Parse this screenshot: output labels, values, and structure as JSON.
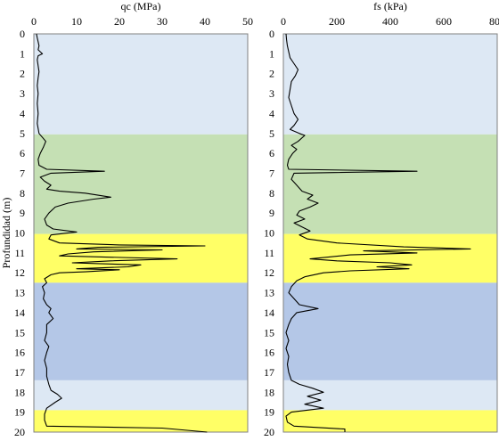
{
  "chart_data": [
    {
      "type": "line",
      "title": "",
      "xlabel": "qc (MPa)",
      "ylabel": "Profundidad (m)",
      "xlim": [
        0,
        50
      ],
      "ylim": [
        0,
        20
      ],
      "x_ticks": [
        "0",
        "10",
        "20",
        "30",
        "40",
        "50"
      ],
      "y_ticks": [
        "0",
        "1",
        "2",
        "3",
        "4",
        "5",
        "6",
        "7",
        "8",
        "9",
        "10",
        "11",
        "12",
        "13",
        "14",
        "15",
        "16",
        "17",
        "18",
        "19",
        "20"
      ],
      "y_inverted": true,
      "x_axis_position": "top",
      "grid": false,
      "series": [
        {
          "points": [
            [
              0.6,
              0.0
            ],
            [
              0.8,
              0.2
            ],
            [
              1.0,
              0.4
            ],
            [
              1.2,
              0.6
            ],
            [
              1.0,
              0.8
            ],
            [
              2.0,
              1.0
            ],
            [
              1.0,
              1.1
            ],
            [
              0.8,
              1.3
            ],
            [
              1.0,
              1.6
            ],
            [
              1.2,
              1.9
            ],
            [
              1.0,
              2.2
            ],
            [
              0.8,
              2.6
            ],
            [
              1.0,
              3.0
            ],
            [
              0.8,
              3.5
            ],
            [
              1.0,
              4.0
            ],
            [
              0.8,
              4.5
            ],
            [
              1.2,
              5.0
            ],
            [
              2.0,
              5.2
            ],
            [
              2.8,
              5.4
            ],
            [
              2.2,
              5.7
            ],
            [
              1.5,
              6.0
            ],
            [
              1.0,
              6.3
            ],
            [
              1.2,
              6.6
            ],
            [
              3.0,
              6.8
            ],
            [
              16.5,
              6.9
            ],
            [
              4.0,
              7.0
            ],
            [
              1.5,
              7.2
            ],
            [
              2.5,
              7.4
            ],
            [
              4.0,
              7.6
            ],
            [
              3.0,
              7.8
            ],
            [
              6.0,
              7.9
            ],
            [
              12.0,
              8.0
            ],
            [
              18.0,
              8.2
            ],
            [
              14.0,
              8.3
            ],
            [
              8.0,
              8.5
            ],
            [
              5.0,
              8.7
            ],
            [
              3.5,
              9.0
            ],
            [
              2.5,
              9.3
            ],
            [
              3.0,
              9.6
            ],
            [
              4.5,
              9.8
            ],
            [
              10.0,
              9.95
            ],
            [
              4.0,
              10.1
            ],
            [
              3.5,
              10.3
            ],
            [
              6.0,
              10.5
            ],
            [
              20.0,
              10.6
            ],
            [
              40.0,
              10.65
            ],
            [
              15.0,
              10.72
            ],
            [
              10.0,
              10.8
            ],
            [
              30.0,
              10.85
            ],
            [
              14.0,
              10.95
            ],
            [
              8.0,
              11.05
            ],
            [
              6.0,
              11.15
            ],
            [
              33.5,
              11.3
            ],
            [
              18.0,
              11.4
            ],
            [
              9.0,
              11.5
            ],
            [
              16.0,
              11.55
            ],
            [
              25.0,
              11.6
            ],
            [
              22.0,
              11.7
            ],
            [
              10.0,
              11.8
            ],
            [
              20.0,
              11.85
            ],
            [
              12.0,
              11.95
            ],
            [
              6.0,
              12.0
            ],
            [
              4.0,
              12.1
            ],
            [
              2.5,
              12.3
            ],
            [
              3.0,
              12.5
            ],
            [
              2.0,
              12.7
            ],
            [
              2.5,
              13.0
            ],
            [
              2.2,
              13.3
            ],
            [
              3.0,
              13.6
            ],
            [
              4.0,
              13.8
            ],
            [
              3.5,
              14.0
            ],
            [
              4.5,
              14.3
            ],
            [
              3.0,
              14.6
            ],
            [
              3.0,
              15.0
            ],
            [
              2.5,
              15.4
            ],
            [
              3.5,
              15.7
            ],
            [
              3.0,
              16.0
            ],
            [
              2.5,
              16.4
            ],
            [
              3.0,
              16.8
            ],
            [
              3.0,
              17.2
            ],
            [
              3.5,
              17.6
            ],
            [
              4.0,
              17.9
            ],
            [
              5.5,
              18.1
            ],
            [
              6.5,
              18.3
            ],
            [
              5.0,
              18.5
            ],
            [
              3.0,
              18.8
            ],
            [
              2.5,
              19.1
            ],
            [
              2.5,
              19.4
            ],
            [
              3.0,
              19.7
            ],
            [
              30.0,
              19.8
            ],
            [
              40.5,
              20.0
            ]
          ]
        }
      ]
    },
    {
      "type": "line",
      "title": "",
      "xlabel": "fs (kPa)",
      "ylabel": "",
      "xlim": [
        0,
        800
      ],
      "ylim": [
        0,
        20
      ],
      "x_ticks": [
        "0",
        "200",
        "400",
        "600",
        "800"
      ],
      "y_ticks": [
        "0",
        "1",
        "2",
        "3",
        "4",
        "5",
        "6",
        "7",
        "8",
        "9",
        "10",
        "11",
        "12",
        "13",
        "14",
        "15",
        "16",
        "17",
        "18",
        "19",
        "20"
      ],
      "y_inverted": true,
      "x_axis_position": "top",
      "grid": false,
      "series": [
        {
          "points": [
            [
              10,
              0.0
            ],
            [
              12,
              0.3
            ],
            [
              15,
              0.6
            ],
            [
              20,
              0.9
            ],
            [
              25,
              1.2
            ],
            [
              40,
              1.5
            ],
            [
              55,
              1.8
            ],
            [
              45,
              2.1
            ],
            [
              30,
              2.4
            ],
            [
              25,
              2.8
            ],
            [
              20,
              3.2
            ],
            [
              30,
              3.6
            ],
            [
              40,
              4.0
            ],
            [
              55,
              4.3
            ],
            [
              40,
              4.6
            ],
            [
              25,
              4.8
            ],
            [
              60,
              5.0
            ],
            [
              80,
              5.1
            ],
            [
              55,
              5.4
            ],
            [
              30,
              5.6
            ],
            [
              50,
              5.8
            ],
            [
              35,
              6.0
            ],
            [
              20,
              6.3
            ],
            [
              15,
              6.6
            ],
            [
              20,
              6.8
            ],
            [
              500,
              6.9
            ],
            [
              40,
              7.0
            ],
            [
              30,
              7.3
            ],
            [
              50,
              7.6
            ],
            [
              70,
              7.9
            ],
            [
              110,
              8.1
            ],
            [
              90,
              8.3
            ],
            [
              130,
              8.5
            ],
            [
              100,
              8.7
            ],
            [
              60,
              8.9
            ],
            [
              50,
              9.1
            ],
            [
              80,
              9.3
            ],
            [
              40,
              9.5
            ],
            [
              70,
              9.7
            ],
            [
              100,
              9.9
            ],
            [
              60,
              10.1
            ],
            [
              90,
              10.3
            ],
            [
              200,
              10.5
            ],
            [
              450,
              10.7
            ],
            [
              700,
              10.8
            ],
            [
              300,
              10.9
            ],
            [
              500,
              11.0
            ],
            [
              250,
              11.1
            ],
            [
              100,
              11.3
            ],
            [
              200,
              11.4
            ],
            [
              400,
              11.5
            ],
            [
              480,
              11.6
            ],
            [
              350,
              11.7
            ],
            [
              470,
              11.8
            ],
            [
              250,
              11.9
            ],
            [
              150,
              12.0
            ],
            [
              80,
              12.2
            ],
            [
              50,
              12.4
            ],
            [
              30,
              12.7
            ],
            [
              20,
              13.0
            ],
            [
              40,
              13.3
            ],
            [
              60,
              13.6
            ],
            [
              130,
              13.8
            ],
            [
              50,
              14.0
            ],
            [
              30,
              14.3
            ],
            [
              20,
              14.6
            ],
            [
              10,
              15.0
            ],
            [
              20,
              15.4
            ],
            [
              10,
              15.8
            ],
            [
              20,
              16.2
            ],
            [
              15,
              16.6
            ],
            [
              20,
              17.0
            ],
            [
              30,
              17.4
            ],
            [
              60,
              17.6
            ],
            [
              110,
              17.8
            ],
            [
              150,
              18.0
            ],
            [
              90,
              18.2
            ],
            [
              140,
              18.4
            ],
            [
              80,
              18.6
            ],
            [
              150,
              18.8
            ],
            [
              30,
              19.0
            ],
            [
              10,
              19.2
            ],
            [
              15,
              19.5
            ],
            [
              40,
              19.7
            ],
            [
              230,
              19.85
            ],
            [
              230,
              20.0
            ]
          ]
        }
      ]
    }
  ],
  "colors": {
    "light_blue": "#dde8f4",
    "green": "#c5e0b4",
    "yellow": "#ffff66",
    "medium_blue": "#b4c7e7",
    "line": "#000000",
    "frame": "#808080"
  },
  "bands": [
    {
      "from": 0,
      "to": 5.05,
      "color": "light_blue"
    },
    {
      "from": 5.05,
      "to": 10.05,
      "color": "green"
    },
    {
      "from": 10.05,
      "to": 12.5,
      "color": "yellow"
    },
    {
      "from": 12.5,
      "to": 17.4,
      "color": "medium_blue"
    },
    {
      "from": 17.4,
      "to": 18.9,
      "color": "light_blue"
    },
    {
      "from": 18.9,
      "to": 20,
      "color": "yellow"
    }
  ]
}
